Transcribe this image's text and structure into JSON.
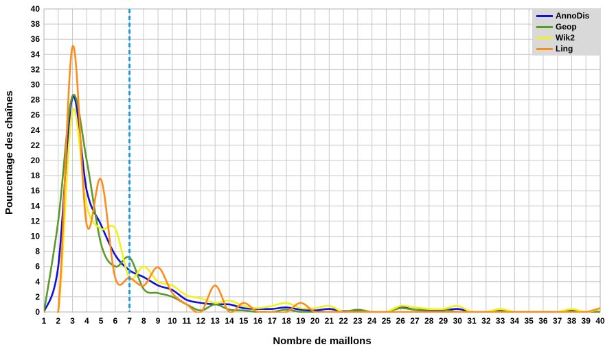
{
  "chart_data": {
    "type": "line",
    "xlabel": "Nombre de maillons",
    "ylabel": "Pourcentage des chaînes",
    "xlim": [
      1,
      40
    ],
    "ylim": [
      0,
      40
    ],
    "x_ticks": [
      1,
      2,
      3,
      4,
      5,
      6,
      7,
      8,
      9,
      10,
      11,
      12,
      13,
      14,
      15,
      16,
      17,
      18,
      19,
      20,
      21,
      22,
      23,
      24,
      25,
      26,
      27,
      28,
      29,
      30,
      31,
      32,
      33,
      34,
      35,
      36,
      37,
      38,
      39,
      40
    ],
    "y_ticks": [
      0,
      2,
      4,
      6,
      8,
      10,
      12,
      14,
      16,
      18,
      20,
      22,
      24,
      26,
      28,
      30,
      32,
      34,
      36,
      38,
      40
    ],
    "grid": true,
    "legend_position": "top-right",
    "vertical_marker": {
      "x": 7,
      "style": "dashed",
      "color": "#1e9be8"
    },
    "x": [
      1,
      2,
      3,
      4,
      5,
      6,
      7,
      8,
      9,
      10,
      11,
      12,
      13,
      14,
      15,
      16,
      17,
      18,
      19,
      20,
      21,
      22,
      23,
      24,
      25,
      26,
      27,
      28,
      29,
      30,
      31,
      32,
      33,
      34,
      35,
      36,
      37,
      38,
      39,
      40
    ],
    "series": [
      {
        "name": "AnnoDis",
        "color": "#1010d8",
        "values": [
          0,
          6,
          28.3,
          16,
          11.5,
          7.5,
          5.5,
          4.6,
          3.5,
          2.9,
          1.6,
          1.2,
          1,
          1,
          0.5,
          0.4,
          0.4,
          0.6,
          0.3,
          0.2,
          0.4,
          0.1,
          0.2,
          0,
          0,
          0.6,
          0.3,
          0.2,
          0.2,
          0.4,
          0,
          0,
          0.2,
          0,
          0,
          0,
          0,
          0.2,
          0,
          0
        ]
      },
      {
        "name": "Geop",
        "color": "#5a9a28",
        "values": [
          0,
          12,
          28.5,
          20,
          9,
          6,
          7.2,
          3,
          2.5,
          2,
          1,
          0.2,
          1,
          0.3,
          0.2,
          0,
          0,
          0.3,
          0,
          0,
          0,
          0,
          0.3,
          0,
          0,
          0.5,
          0.3,
          0.3,
          0.3,
          0,
          0,
          0,
          0.3,
          0,
          0,
          0,
          0,
          0.3,
          0,
          0
        ]
      },
      {
        "name": "Wik2",
        "color": "#f2f21a",
        "values": [
          0,
          0,
          26.5,
          14,
          11,
          11,
          4.5,
          6,
          4,
          3.5,
          2.2,
          1.8,
          1.2,
          1.5,
          0.8,
          0.5,
          0.8,
          1.2,
          0.5,
          0.5,
          0.8,
          0,
          0,
          0,
          0,
          0.8,
          0.6,
          0.4,
          0.4,
          0.8,
          0,
          0,
          0.4,
          0,
          0,
          0,
          0,
          0.4,
          0,
          0.4
        ]
      },
      {
        "name": "Ling",
        "color": "#ff8c1a",
        "values": [
          0,
          0,
          35,
          11.5,
          17.5,
          4.5,
          4.5,
          3.5,
          5.9,
          2.5,
          1,
          0,
          3.5,
          0,
          1.2,
          0,
          0,
          0,
          1.2,
          0,
          0,
          0,
          0,
          0,
          0,
          0,
          0,
          0,
          0,
          0,
          0,
          0,
          0,
          0,
          0,
          0,
          0,
          0,
          0,
          0.5
        ]
      }
    ]
  }
}
